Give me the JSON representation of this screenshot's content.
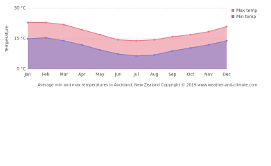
{
  "chart_data": {
    "type": "area",
    "y_label": "Temperature",
    "caption": "Average min and max temperatures in Auckland, New Zealand   Copyright © 2019 www.weather-and-climate.com",
    "categories": [
      "Jan",
      "Feb",
      "Mar",
      "Apr",
      "May",
      "Jun",
      "Jul",
      "Aug",
      "Sep",
      "Oct",
      "Nov",
      "Dec"
    ],
    "series": [
      {
        "name": "Max temp",
        "color": "#e8727f",
        "values": [
          23,
          23,
          22,
          19.5,
          17,
          14.5,
          14,
          14.5,
          16,
          17,
          18.5,
          21
        ]
      },
      {
        "name": "Min temp",
        "color": "#7a78cc",
        "values": [
          15,
          15.5,
          14,
          12,
          9.5,
          7.5,
          6.5,
          7,
          9,
          10.5,
          12,
          14
        ]
      }
    ],
    "ylim": [
      0,
      30
    ],
    "yticks": [
      {
        "value": 0,
        "label": "0 °C"
      },
      {
        "value": 15,
        "label": "15 °C"
      },
      {
        "value": 30,
        "label": "30 °C"
      }
    ],
    "grid": true
  }
}
